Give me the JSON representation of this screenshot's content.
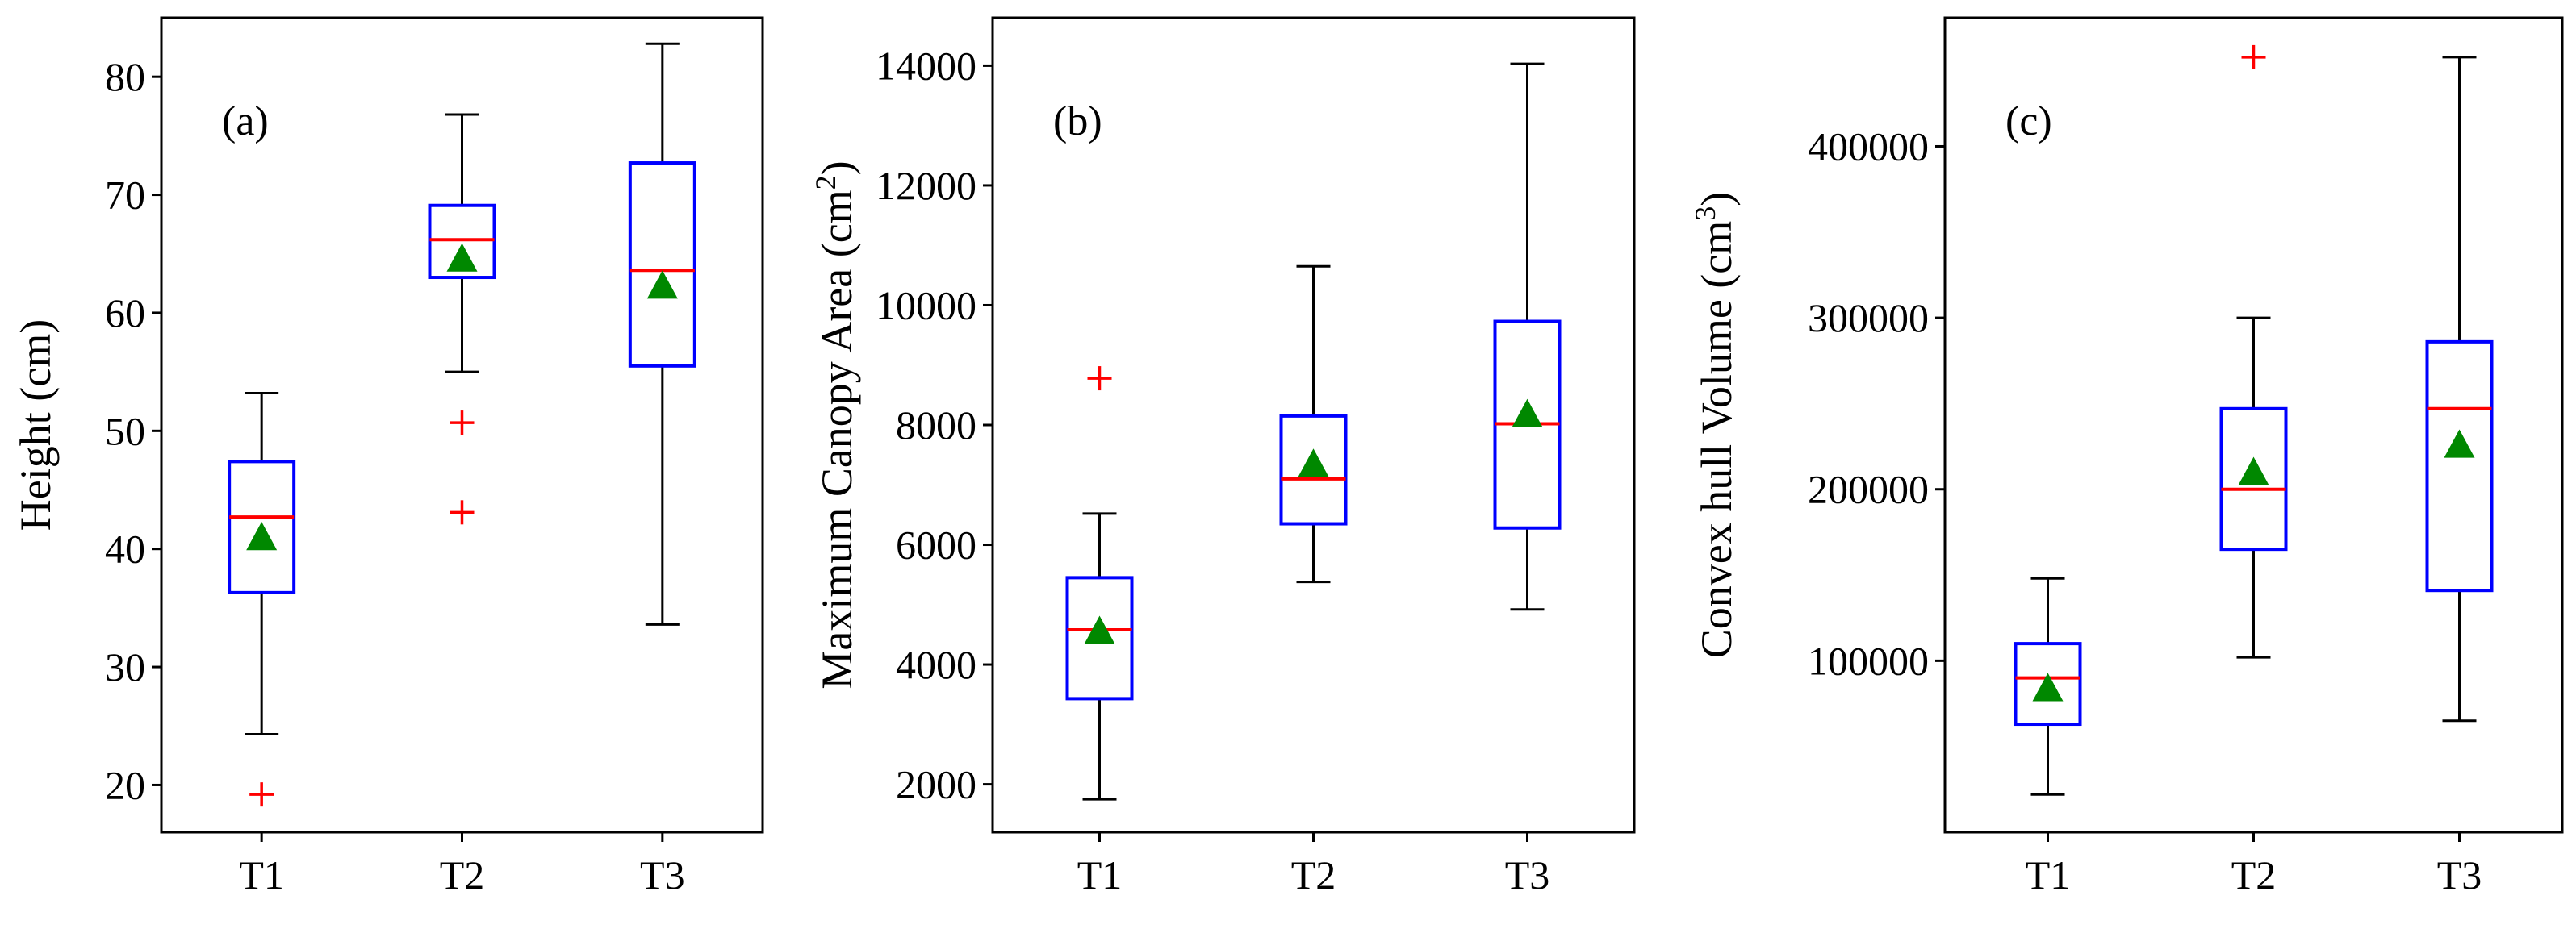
{
  "colors": {
    "box": "#0000ff",
    "median": "#ff0000",
    "mean": "#008800",
    "whisker": "#000000",
    "outlier": "#ff0000"
  },
  "chart_data": [
    {
      "type": "box",
      "panel_label": "(a)",
      "ylabel": "Height (cm)",
      "ylabel_sup": "",
      "ylabel_suffix": "",
      "categories": [
        "T1",
        "T2",
        "T3"
      ],
      "ylim": [
        16,
        85
      ],
      "yticks": [
        20,
        30,
        40,
        50,
        60,
        70,
        80
      ],
      "boxes": [
        {
          "category": "T1",
          "whisker_low": 24.3,
          "q1": 36.3,
          "median": 42.7,
          "q3": 47.4,
          "whisker_high": 53.2,
          "mean": 41.0,
          "outliers": [
            19.2
          ]
        },
        {
          "category": "T2",
          "whisker_low": 55.0,
          "q1": 63.0,
          "median": 66.2,
          "q3": 69.1,
          "whisker_high": 76.8,
          "mean": 64.6,
          "outliers": [
            50.7,
            43.1
          ]
        },
        {
          "category": "T3",
          "whisker_low": 33.6,
          "q1": 55.5,
          "median": 63.6,
          "q3": 72.7,
          "whisker_high": 82.8,
          "mean": 62.3,
          "outliers": []
        }
      ]
    },
    {
      "type": "box",
      "panel_label": "(b)",
      "ylabel": "Maximum Canopy Area (cm",
      "ylabel_sup": "2",
      "ylabel_suffix": ")",
      "categories": [
        "T1",
        "T2",
        "T3"
      ],
      "ylim": [
        1200,
        14800
      ],
      "yticks": [
        2000,
        4000,
        6000,
        8000,
        10000,
        12000,
        14000
      ],
      "boxes": [
        {
          "category": "T1",
          "whisker_low": 1750,
          "q1": 3430,
          "median": 4580,
          "q3": 5450,
          "whisker_high": 6520,
          "mean": 4560,
          "outliers": [
            8780
          ]
        },
        {
          "category": "T2",
          "whisker_low": 5380,
          "q1": 6350,
          "median": 7100,
          "q3": 8150,
          "whisker_high": 10650,
          "mean": 7350,
          "outliers": []
        },
        {
          "category": "T3",
          "whisker_low": 4920,
          "q1": 6280,
          "median": 8020,
          "q3": 9730,
          "whisker_high": 14030,
          "mean": 8180,
          "outliers": []
        }
      ]
    },
    {
      "type": "box",
      "panel_label": "(c)",
      "ylabel": "Convex hull Volume (cm",
      "ylabel_sup": "3",
      "ylabel_suffix": ")",
      "categories": [
        "T1",
        "T2",
        "T3"
      ],
      "ylim": [
        0,
        475000
      ],
      "yticks": [
        100000,
        200000,
        300000,
        400000
      ],
      "boxes": [
        {
          "category": "T1",
          "whisker_low": 22000,
          "q1": 63000,
          "median": 90000,
          "q3": 110000,
          "whisker_high": 148000,
          "mean": 84000,
          "outliers": []
        },
        {
          "category": "T2",
          "whisker_low": 102000,
          "q1": 165000,
          "median": 200000,
          "q3": 247000,
          "whisker_high": 300000,
          "mean": 210000,
          "outliers": [
            452000
          ]
        },
        {
          "category": "T3",
          "whisker_low": 65000,
          "q1": 141000,
          "median": 247000,
          "q3": 286000,
          "whisker_high": 452000,
          "mean": 226000,
          "outliers": []
        }
      ]
    }
  ]
}
